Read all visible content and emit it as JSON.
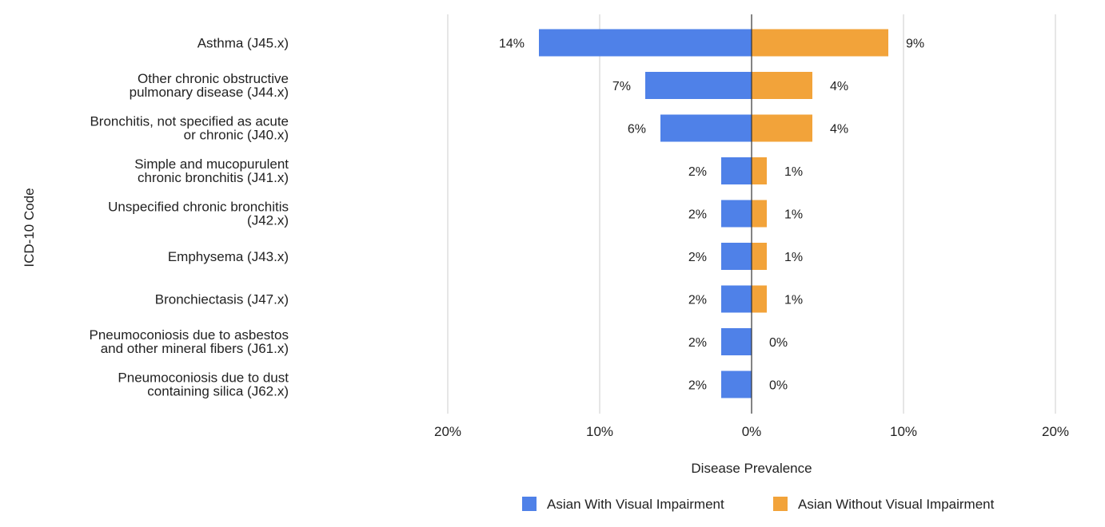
{
  "chart_data": {
    "type": "bar",
    "orientation": "horizontal",
    "layout": "diverging",
    "categories": [
      [
        "Asthma (J45.x)"
      ],
      [
        "Other chronic obstructive",
        "pulmonary disease (J44.x)"
      ],
      [
        "Bronchitis, not specified as acute",
        "or chronic (J40.x)"
      ],
      [
        "Simple and mucopurulent",
        "chronic bronchitis (J41.x)"
      ],
      [
        "Unspecified chronic bronchitis",
        "(J42.x)"
      ],
      [
        "Emphysema (J43.x)"
      ],
      [
        "Bronchiectasis (J47.x)"
      ],
      [
        "Pneumoconiosis due to asbestos",
        "and other mineral fibers (J61.x)"
      ],
      [
        "Pneumoconiosis due to dust",
        "containing silica (J62.x)"
      ]
    ],
    "series": [
      {
        "name": "Asian With Visual Impairment",
        "color": "#4f81e8",
        "side": "left",
        "values": [
          14,
          7,
          6,
          2,
          2,
          2,
          2,
          2,
          2
        ],
        "labels": [
          "14%",
          "7%",
          "6%",
          "2%",
          "2%",
          "2%",
          "2%",
          "2%",
          "2%"
        ]
      },
      {
        "name": "Asian Without Visual Impairment",
        "color": "#f2a33a",
        "side": "right",
        "values": [
          9,
          4,
          4,
          1,
          1,
          1,
          1,
          0,
          0
        ],
        "labels": [
          "9%",
          "4%",
          "4%",
          "1%",
          "1%",
          "1%",
          "1%",
          "0%",
          "0%"
        ]
      }
    ],
    "x_ticks": [
      -20,
      -10,
      0,
      10,
      20
    ],
    "x_tick_labels": [
      "20%",
      "10%",
      "0%",
      "10%",
      "20%"
    ],
    "xlim": [
      -20,
      20
    ],
    "xlabel": "Disease Prevalence",
    "ylabel": "ICD-10 Code",
    "grid": true,
    "legend_position": "bottom"
  }
}
